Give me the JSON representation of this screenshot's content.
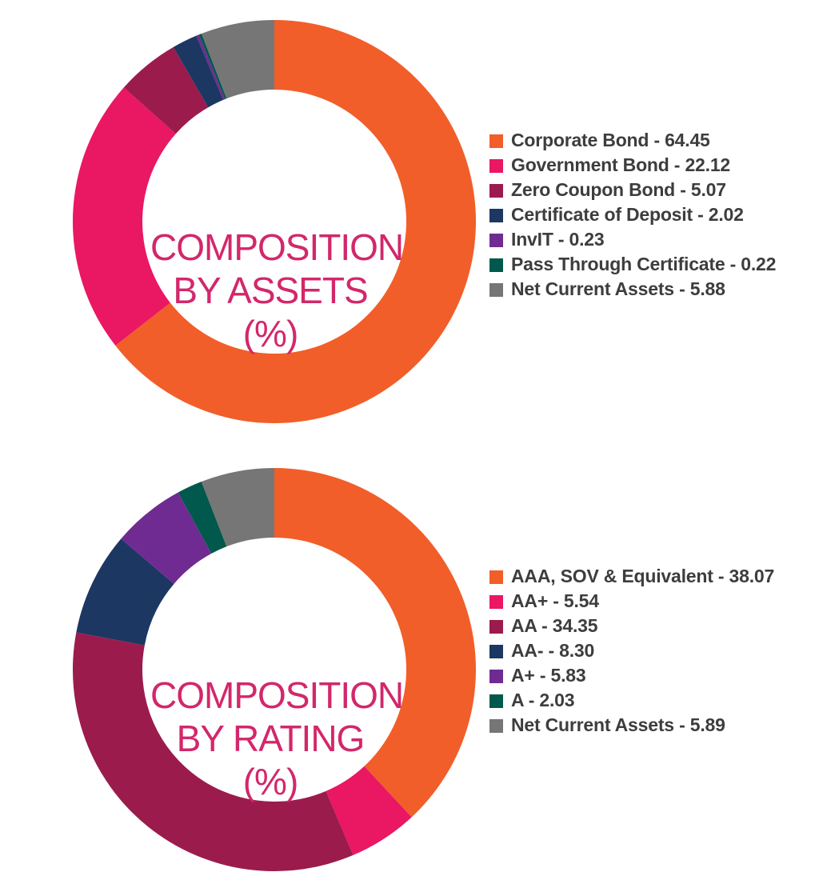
{
  "chart_data": [
    {
      "type": "pie",
      "donut": true,
      "title_lines": [
        "COMPOSITION",
        "BY ASSETS",
        "(%)"
      ],
      "series": [
        {
          "label": "Corporate Bond",
          "value": 64.45,
          "color": "#f15e29"
        },
        {
          "label": "Government Bond",
          "value": 22.12,
          "color": "#ea1763"
        },
        {
          "label": "Zero Coupon Bond",
          "value": 5.07,
          "color": "#9b1b4d"
        },
        {
          "label": "Certificate of Deposit",
          "value": 2.02,
          "color": "#1c3762"
        },
        {
          "label": "InvIT",
          "value": 0.23,
          "color": "#6f2b92"
        },
        {
          "label": "Pass Through Certificate",
          "value": 0.22,
          "color": "#00594c"
        },
        {
          "label": "Net Current Assets",
          "value": 5.88,
          "color": "#767676"
        }
      ],
      "legend_items": [
        "Corporate Bond - 64.45",
        "Government Bond - 22.12",
        "Zero Coupon Bond - 5.07",
        "Certificate of Deposit - 2.02",
        "InvIT - 0.23",
        "Pass Through Certificate - 0.22",
        "Net Current Assets - 5.88"
      ],
      "legend_placement": "right"
    },
    {
      "type": "pie",
      "donut": true,
      "title_lines": [
        "COMPOSITION",
        "BY RATING",
        "(%)"
      ],
      "series": [
        {
          "label": "AAA, SOV & Equivalent",
          "value": 38.07,
          "color": "#f15e29"
        },
        {
          "label": "AA+",
          "value": 5.54,
          "color": "#ea1763"
        },
        {
          "label": "AA",
          "value": 34.35,
          "color": "#9b1b4d"
        },
        {
          "label": "AA-",
          "value": 8.3,
          "color": "#1c3762"
        },
        {
          "label": "A+",
          "value": 5.83,
          "color": "#6f2b92"
        },
        {
          "label": "A",
          "value": 2.03,
          "color": "#00594c"
        },
        {
          "label": "Net Current Assets",
          "value": 5.89,
          "color": "#767676"
        }
      ],
      "legend_items": [
        "AAA, SOV & Equivalent - 38.07",
        "AA+ - 5.54",
        "AA - 34.35",
        "AA- - 8.30",
        "A+ - 5.83",
        "A - 2.03",
        "Net Current Assets - 5.89"
      ],
      "legend_placement": "right"
    }
  ]
}
